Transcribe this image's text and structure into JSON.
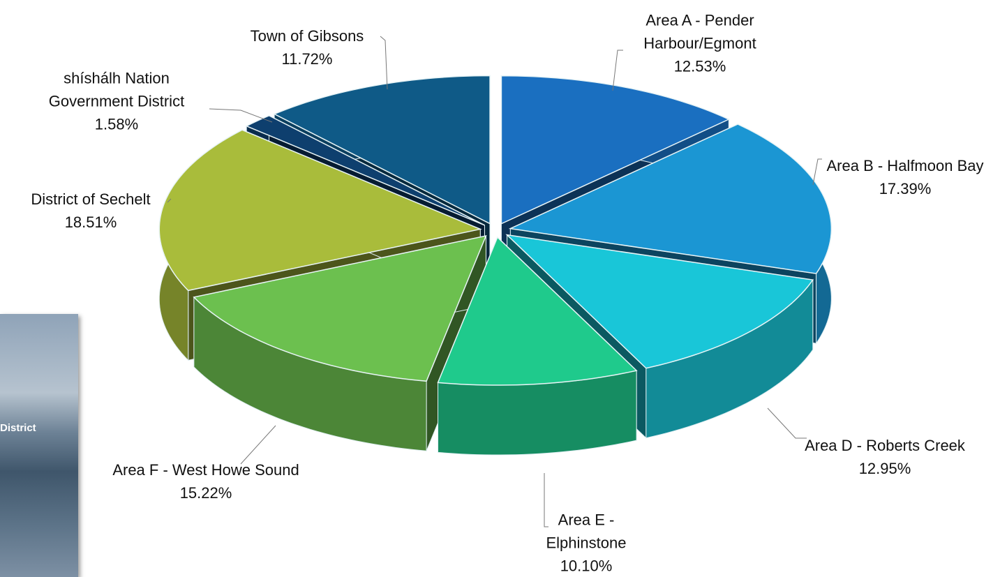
{
  "chart_data": {
    "type": "pie3d",
    "categories": [
      "Area A - Pender Harbour/Egmont",
      "Area B - Halfmoon Bay",
      "Area D - Roberts Creek",
      "Area E - Elphinstone",
      "Area F - West Howe Sound",
      "District of Sechelt",
      "shíshálh Nation Government District",
      "Town of Gibsons"
    ],
    "values": [
      12.53,
      17.39,
      12.95,
      10.1,
      15.22,
      18.51,
      1.58,
      11.72
    ],
    "value_labels": [
      "12.53%",
      "17.39%",
      "12.95%",
      "10.10%",
      "15.22%",
      "18.51%",
      "1.58%",
      "11.72%"
    ],
    "colors": [
      "#1a6fc0",
      "#1b96d3",
      "#19c6d8",
      "#1fca8c",
      "#6cc04f",
      "#a9bc3b",
      "#0e3f6e",
      "#0f5a87"
    ]
  },
  "overlay": {
    "label": "District"
  }
}
